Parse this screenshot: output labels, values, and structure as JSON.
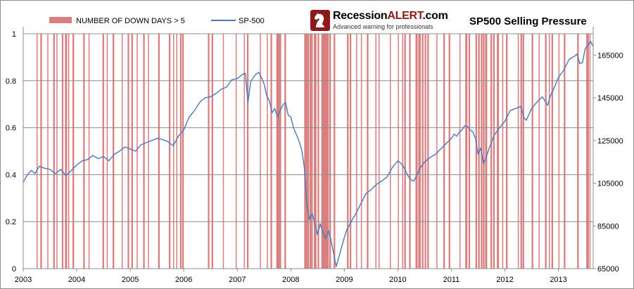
{
  "brand": {
    "name_main": "Recession",
    "name_accent": "ALERT",
    "name_suffix": ".com",
    "tagline": "Advanced warning for professionals",
    "logo_icon": "knight-chess-piece-icon",
    "accent_color": "#8b1a1a"
  },
  "chart_data": {
    "type": "bar",
    "title": "SP500 Selling Pressure",
    "xlabel": "",
    "ylabel": "",
    "y2label": "",
    "x_axis_ticks": [
      "2003",
      "2004",
      "2005",
      "2006",
      "2007",
      "2008",
      "2009",
      "2010",
      "2011",
      "2012",
      "2013"
    ],
    "xlim": [
      2003.0,
      2013.65
    ],
    "y_left": {
      "ylim": [
        0,
        1
      ],
      "ticks": [
        "0",
        "0.2",
        "0.4",
        "0.6",
        "0.8",
        "1"
      ]
    },
    "y_right": {
      "ylim": [
        65000,
        175000
      ],
      "ticks": [
        "65000",
        "85000",
        "105000",
        "125000",
        "145000",
        "165000"
      ]
    },
    "grid": true,
    "legend_position": "top-left",
    "series": [
      {
        "name": "NUMBER OF DOWN DAYS > 5",
        "type": "bar",
        "axis": "left",
        "color": "#d88080",
        "value": 1,
        "x_dates": [
          2003.25,
          2003.32,
          2003.45,
          2003.56,
          2003.62,
          2003.72,
          2003.78,
          2003.84,
          2003.92,
          2004.12,
          2004.22,
          2004.48,
          2004.56,
          2004.67,
          2004.84,
          2004.95,
          2005.02,
          2005.12,
          2005.24,
          2005.33,
          2005.52,
          2005.72,
          2005.8,
          2005.86,
          2005.93,
          2005.97,
          2006.45,
          2006.52,
          2006.73,
          2006.97,
          2007.12,
          2007.18,
          2007.42,
          2007.55,
          2007.62,
          2007.73,
          2007.79,
          2007.88,
          2008.25,
          2008.28,
          2008.31,
          2008.35,
          2008.38,
          2008.43,
          2008.5,
          2008.57,
          2008.63,
          2008.68,
          2008.72,
          2008.8,
          2009.05,
          2009.1,
          2009.22,
          2009.31,
          2009.42,
          2009.58,
          2009.64,
          2009.85,
          2010.0,
          2010.08,
          2010.12,
          2010.21,
          2010.33,
          2010.38,
          2010.4,
          2010.45,
          2010.5,
          2010.55,
          2010.72,
          2010.85,
          2010.95,
          2011.15,
          2011.26,
          2011.32,
          2011.45,
          2011.5,
          2011.55,
          2011.59,
          2011.63,
          2011.73,
          2011.78,
          2011.85,
          2011.95,
          2012.02,
          2012.24,
          2012.29,
          2012.33,
          2012.5,
          2012.63,
          2012.75,
          2012.82,
          2012.87,
          2013.0,
          2013.1,
          2013.35,
          2013.52,
          2013.58
        ],
        "x_widths": [
          0.02,
          0.03,
          0.02,
          0.03,
          0.02,
          0.03,
          0.04,
          0.02,
          0.03,
          0.03,
          0.02,
          0.03,
          0.02,
          0.03,
          0.02,
          0.03,
          0.03,
          0.02,
          0.03,
          0.02,
          0.03,
          0.03,
          0.02,
          0.02,
          0.03,
          0.03,
          0.03,
          0.03,
          0.02,
          0.02,
          0.02,
          0.03,
          0.02,
          0.02,
          0.03,
          0.06,
          0.03,
          0.03,
          0.03,
          0.03,
          0.03,
          0.03,
          0.03,
          0.05,
          0.03,
          0.07,
          0.05,
          0.03,
          0.03,
          0.03,
          0.03,
          0.03,
          0.02,
          0.02,
          0.03,
          0.02,
          0.02,
          0.02,
          0.02,
          0.02,
          0.03,
          0.03,
          0.04,
          0.02,
          0.03,
          0.03,
          0.03,
          0.03,
          0.02,
          0.03,
          0.03,
          0.02,
          0.04,
          0.03,
          0.03,
          0.03,
          0.03,
          0.03,
          0.04,
          0.03,
          0.03,
          0.04,
          0.02,
          0.03,
          0.02,
          0.03,
          0.03,
          0.03,
          0.02,
          0.03,
          0.02,
          0.03,
          0.02,
          0.03,
          0.03,
          0.05,
          0.02
        ]
      },
      {
        "name": "SP-500",
        "type": "line",
        "axis": "right",
        "color": "#4a7abb",
        "x": [
          2003.0,
          2003.08,
          2003.15,
          2003.22,
          2003.3,
          2003.4,
          2003.5,
          2003.6,
          2003.7,
          2003.8,
          2003.9,
          2004.0,
          2004.1,
          2004.2,
          2004.3,
          2004.4,
          2004.5,
          2004.6,
          2004.7,
          2004.8,
          2004.9,
          2005.0,
          2005.1,
          2005.2,
          2005.3,
          2005.4,
          2005.5,
          2005.6,
          2005.7,
          2005.8,
          2005.9,
          2006.0,
          2006.1,
          2006.2,
          2006.3,
          2006.4,
          2006.5,
          2006.6,
          2006.7,
          2006.8,
          2006.9,
          2007.0,
          2007.05,
          2007.1,
          2007.15,
          2007.2,
          2007.25,
          2007.3,
          2007.35,
          2007.4,
          2007.45,
          2007.5,
          2007.55,
          2007.6,
          2007.65,
          2007.7,
          2007.75,
          2007.8,
          2007.85,
          2007.9,
          2007.95,
          2008.0,
          2008.05,
          2008.1,
          2008.15,
          2008.2,
          2008.25,
          2008.3,
          2008.35,
          2008.4,
          2008.45,
          2008.5,
          2008.55,
          2008.6,
          2008.65,
          2008.7,
          2008.75,
          2008.8,
          2008.85,
          2008.9,
          2008.95,
          2009.0,
          2009.05,
          2009.1,
          2009.15,
          2009.2,
          2009.3,
          2009.4,
          2009.5,
          2009.6,
          2009.7,
          2009.8,
          2009.9,
          2010.0,
          2010.05,
          2010.1,
          2010.15,
          2010.2,
          2010.25,
          2010.3,
          2010.35,
          2010.4,
          2010.5,
          2010.6,
          2010.7,
          2010.8,
          2010.9,
          2011.0,
          2011.05,
          2011.1,
          2011.15,
          2011.2,
          2011.25,
          2011.3,
          2011.35,
          2011.4,
          2011.45,
          2011.5,
          2011.55,
          2011.6,
          2011.65,
          2011.7,
          2011.8,
          2011.9,
          2012.0,
          2012.1,
          2012.2,
          2012.3,
          2012.35,
          2012.4,
          2012.5,
          2012.6,
          2012.7,
          2012.8,
          2012.85,
          2012.9,
          2013.0,
          2013.1,
          2013.2,
          2013.3,
          2013.35,
          2013.4,
          2013.45,
          2013.5,
          2013.55,
          2013.6,
          2013.65
        ],
        "values": [
          105500,
          109000,
          111000,
          109500,
          113000,
          112000,
          111500,
          109500,
          111500,
          108500,
          111000,
          113500,
          115500,
          116000,
          118000,
          116500,
          117500,
          115500,
          118500,
          120000,
          122000,
          121000,
          120000,
          123000,
          124000,
          125000,
          126000,
          125500,
          124500,
          122500,
          127000,
          130000,
          136000,
          139000,
          143000,
          145000,
          145500,
          147000,
          149000,
          150000,
          153500,
          154000,
          155000,
          156000,
          156500,
          143000,
          152500,
          154500,
          156000,
          157000,
          154500,
          151500,
          146000,
          143500,
          138000,
          140000,
          136000,
          139000,
          141500,
          143000,
          137000,
          136000,
          131000,
          128000,
          125000,
          121000,
          113000,
          95000,
          88000,
          91000,
          86000,
          81000,
          86000,
          82000,
          79000,
          83000,
          78500,
          72000,
          66000,
          70500,
          75000,
          79500,
          83500,
          85500,
          88000,
          90000,
          95000,
          100000,
          102000,
          104500,
          106000,
          108000,
          112500,
          115500,
          114500,
          113000,
          110500,
          108000,
          106500,
          106000,
          108500,
          111500,
          115000,
          117000,
          118500,
          121000,
          123500,
          126000,
          128000,
          127000,
          129000,
          130000,
          132000,
          131500,
          130000,
          129000,
          126000,
          118500,
          121500,
          114000,
          117000,
          121000,
          127500,
          131000,
          134000,
          139000,
          140000,
          141000,
          136000,
          134500,
          140000,
          143000,
          145500,
          141500,
          146000,
          148500,
          154500,
          158000,
          163000,
          164500,
          165500,
          161000,
          161500,
          168000,
          169500,
          171500,
          169000
        ]
      }
    ]
  }
}
